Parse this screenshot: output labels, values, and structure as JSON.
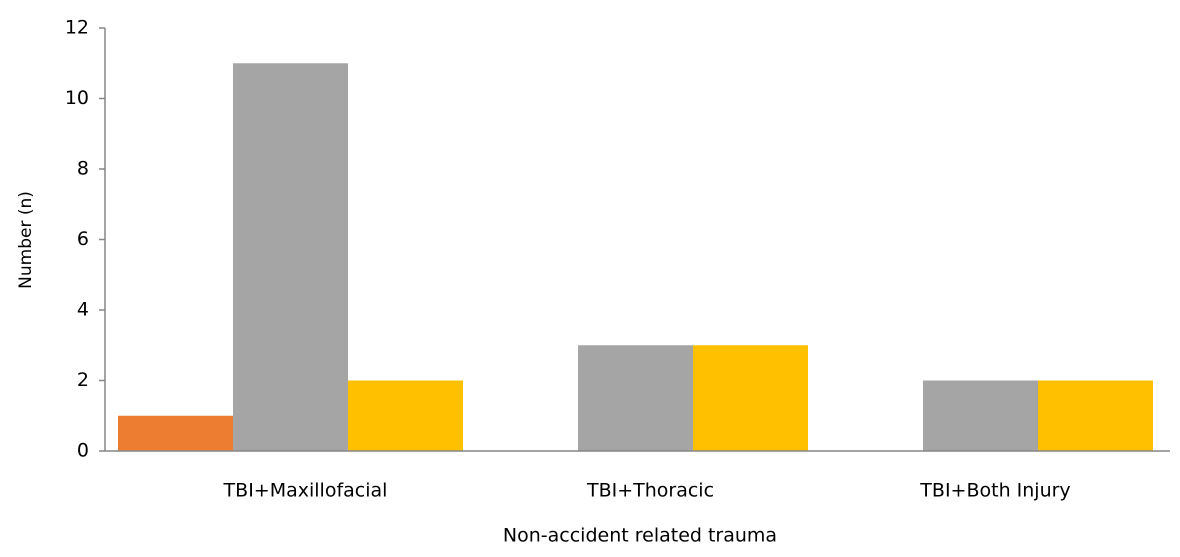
{
  "chart_data": {
    "type": "bar",
    "x_label": "Non-accident related  trauma",
    "y_label": "Number (n)",
    "categories": [
      "TBI+Maxillofacial",
      "TBI+Thoracic",
      "TBI+Both Injury"
    ],
    "series": [
      {
        "color": "#ed7d31",
        "values": [
          1,
          0,
          0
        ]
      },
      {
        "color": "#a5a5a5",
        "values": [
          11,
          3,
          2
        ]
      },
      {
        "color": "#ffc000",
        "values": [
          2,
          3,
          2
        ]
      }
    ],
    "ylim": [
      0,
      12
    ],
    "yticks": [
      0,
      2,
      4,
      6,
      8,
      10,
      12
    ],
    "grid": false
  }
}
